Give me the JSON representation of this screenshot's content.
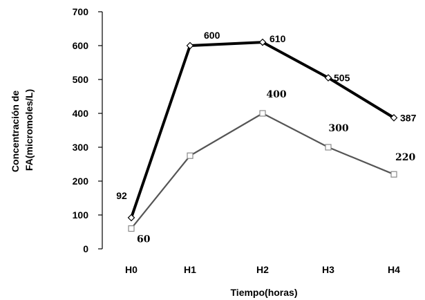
{
  "chart_data": {
    "type": "line",
    "categories": [
      "H0",
      "H1",
      "H2",
      "H3",
      "H4"
    ],
    "series": [
      {
        "values": [
          92,
          600,
          610,
          505,
          387
        ],
        "labels": [
          "92",
          "600",
          "610",
          "505",
          "387"
        ],
        "color": "#000000",
        "marker": "diamond"
      },
      {
        "values": [
          60,
          275,
          400,
          300,
          220
        ],
        "labels": [
          "60",
          "",
          "400",
          "300",
          "220"
        ],
        "color": "#555555",
        "marker": "square"
      }
    ],
    "xlabel": "Tiempo(horas)",
    "ylabel_lines": [
      "Concentración de",
      "FA(micromoles/L)"
    ],
    "ylim": [
      0,
      700
    ],
    "yticks": [
      0,
      100,
      200,
      300,
      400,
      500,
      600,
      700
    ],
    "grid": false,
    "legend": false
  }
}
